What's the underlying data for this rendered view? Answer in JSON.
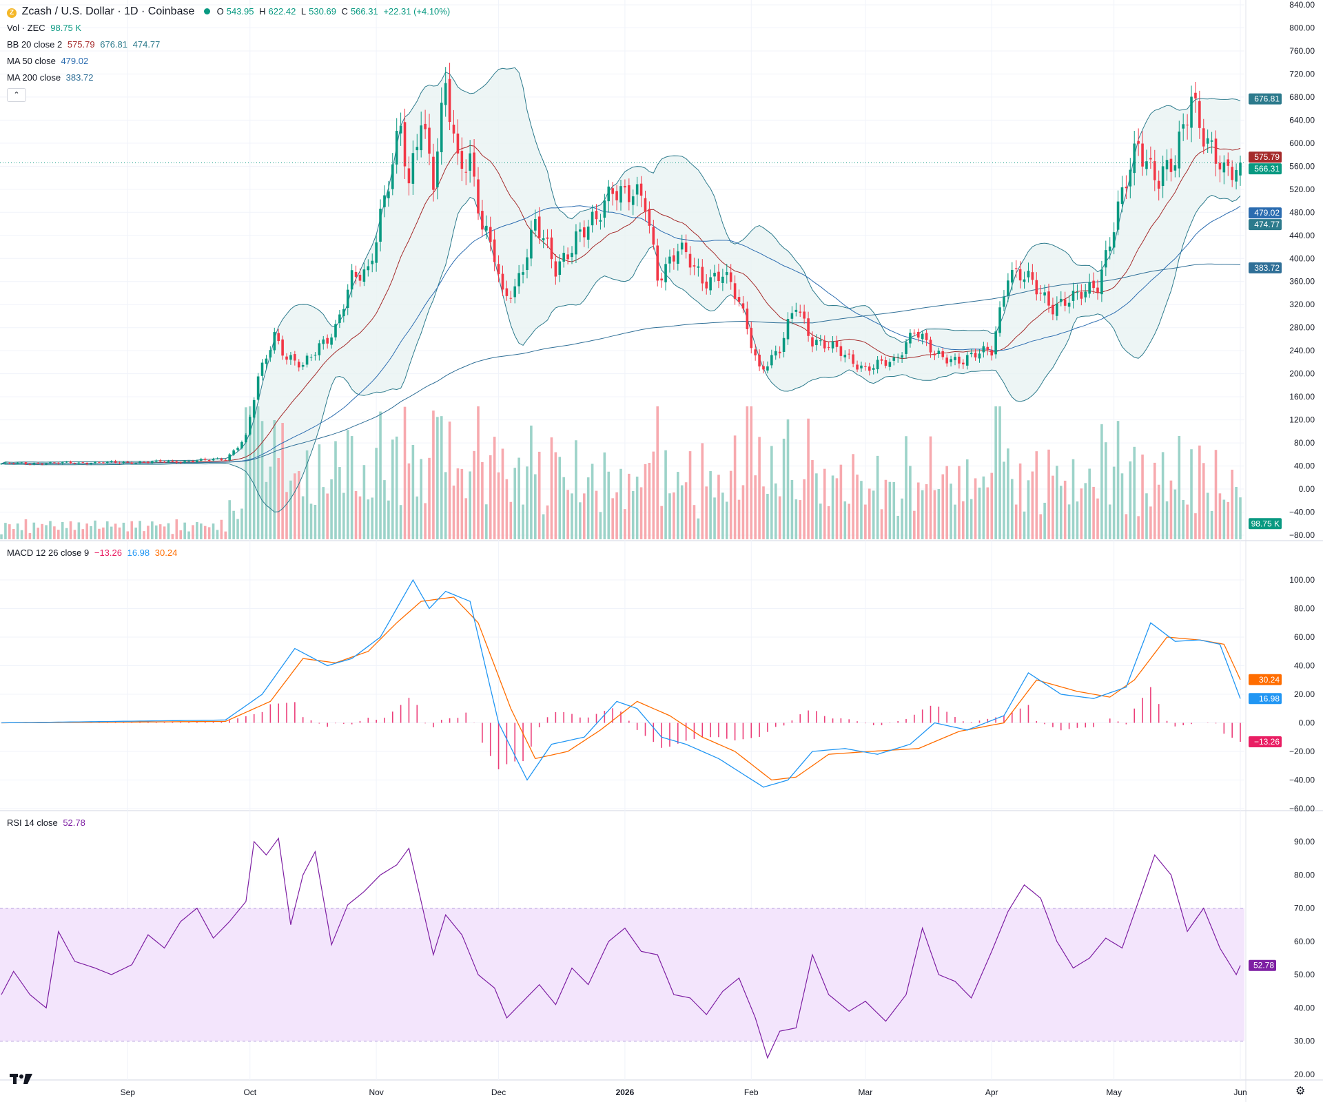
{
  "header": {
    "symbol_icon": "zcash-coin-icon",
    "title": "Zcash / U.S. Dollar · 1D · Coinbase",
    "status_dot_color": "#089981",
    "ohlc": {
      "o_label": "O",
      "o": "543.95",
      "h_label": "H",
      "h": "622.42",
      "l_label": "L",
      "l": "530.69",
      "c_label": "C",
      "c": "566.31",
      "change": "+22.31 (+4.10%)"
    }
  },
  "indicators": {
    "vol": {
      "label": "Vol · ZEC",
      "value": "98.75 K"
    },
    "bb": {
      "label": "BB 20 close 2",
      "basis": "575.79",
      "upper": "676.81",
      "lower": "474.77"
    },
    "ma50": {
      "label": "MA 50 close",
      "value": "479.02"
    },
    "ma200": {
      "label": "MA 200 close",
      "value": "383.72"
    },
    "macd": {
      "label": "MACD 12 26 close 9",
      "hist": "−13.26",
      "macd": "16.98",
      "signal": "30.24"
    },
    "rsi": {
      "label": "RSI 14 close",
      "value": "52.78"
    }
  },
  "colors": {
    "up": "#089981",
    "down": "#f23645",
    "bb_basis": "#a52a2a",
    "bb_band": "#2c7a8c",
    "bb_fill": "#e8f3f2",
    "ma50": "#2b6cb0",
    "ma200": "#2f6f97",
    "macd": "#2196f3",
    "signal": "#ff6d00",
    "hist": "#e91e63",
    "rsi": "#7e1fa3",
    "rsi_band": "#f3e5fc",
    "vol_up": "#9cd3c9",
    "vol_down": "#f7a9ae"
  },
  "chart_data": [
    {
      "type": "candlestick",
      "title": "Zcash / U.S. Dollar · 1D · Coinbase",
      "y_ticks": [
        "840.00",
        "800.00",
        "760.00",
        "720.00",
        "680.00",
        "640.00",
        "600.00",
        "560.00",
        "520.00",
        "480.00",
        "440.00",
        "400.00",
        "360.00",
        "320.00",
        "280.00",
        "240.00",
        "200.00",
        "160.00",
        "120.00",
        "80.00",
        "40.00",
        "0.00",
        "−40.00",
        "−80.00"
      ],
      "ylim": [
        -80,
        840
      ],
      "x_labels": [
        "Sep",
        "Oct",
        "Nov",
        "Dec",
        "2026",
        "Feb",
        "Mar",
        "Apr",
        "May",
        "Jun"
      ],
      "close_path": [
        [
          "2025-08-01",
          44
        ],
        [
          "2025-08-15",
          45
        ],
        [
          "2025-09-01",
          46
        ],
        [
          "2025-09-15",
          48
        ],
        [
          "2025-09-25",
          52
        ],
        [
          "2025-09-30",
          90
        ],
        [
          "2025-10-03",
          190
        ],
        [
          "2025-10-07",
          270
        ],
        [
          "2025-10-10",
          230
        ],
        [
          "2025-10-14",
          210
        ],
        [
          "2025-10-18",
          250
        ],
        [
          "2025-10-22",
          280
        ],
        [
          "2025-10-26",
          360
        ],
        [
          "2025-10-30",
          380
        ],
        [
          "2025-11-02",
          480
        ],
        [
          "2025-11-05",
          560
        ],
        [
          "2025-11-07",
          620
        ],
        [
          "2025-11-09",
          520
        ],
        [
          "2025-11-12",
          660
        ],
        [
          "2025-11-15",
          540
        ],
        [
          "2025-11-18",
          690
        ],
        [
          "2025-11-21",
          560
        ],
        [
          "2025-11-24",
          580
        ],
        [
          "2025-11-27",
          460
        ],
        [
          "2025-11-30",
          400
        ],
        [
          "2025-12-02",
          330
        ],
        [
          "2025-12-05",
          350
        ],
        [
          "2025-12-10",
          460
        ],
        [
          "2025-12-15",
          380
        ],
        [
          "2025-12-20",
          440
        ],
        [
          "2025-12-25",
          460
        ],
        [
          "2025-12-29",
          530
        ],
        [
          "2026-01-03",
          510
        ],
        [
          "2026-01-06",
          490
        ],
        [
          "2026-01-09",
          370
        ],
        [
          "2026-01-14",
          420
        ],
        [
          "2026-01-20",
          360
        ],
        [
          "2026-01-25",
          380
        ],
        [
          "2026-01-29",
          320
        ],
        [
          "2026-02-03",
          210
        ],
        [
          "2026-02-08",
          240
        ],
        [
          "2026-02-12",
          320
        ],
        [
          "2026-02-16",
          260
        ],
        [
          "2026-02-22",
          240
        ],
        [
          "2026-03-01",
          210
        ],
        [
          "2026-03-08",
          220
        ],
        [
          "2026-03-13",
          280
        ],
        [
          "2026-03-18",
          230
        ],
        [
          "2026-03-25",
          225
        ],
        [
          "2026-04-01",
          240
        ],
        [
          "2026-04-05",
          380
        ],
        [
          "2026-04-10",
          360
        ],
        [
          "2026-04-16",
          320
        ],
        [
          "2026-04-22",
          330
        ],
        [
          "2026-04-27",
          360
        ],
        [
          "2026-05-02",
          480
        ],
        [
          "2026-05-07",
          600
        ],
        [
          "2026-05-12",
          540
        ],
        [
          "2026-05-16",
          560
        ],
        [
          "2026-05-20",
          690
        ],
        [
          "2026-05-24",
          600
        ],
        [
          "2026-05-28",
          540
        ],
        [
          "2026-06-01",
          566.31
        ]
      ],
      "bollinger_20_2": {
        "basis_last": 575.79,
        "upper_last": 676.81,
        "lower_last": 474.77
      },
      "ma50_last": 479.02,
      "ma200_last": 383.72,
      "last_price": 566.31,
      "price_labels": [
        {
          "value": "676.81",
          "series": "bb_upper"
        },
        {
          "value": "575.79",
          "series": "bb_basis"
        },
        {
          "value": "566.31",
          "series": "last"
        },
        {
          "value": "479.02",
          "series": "ma50"
        },
        {
          "value": "474.77",
          "series": "bb_lower"
        },
        {
          "value": "383.72",
          "series": "ma200"
        },
        {
          "value": "98.75 K",
          "series": "volume"
        }
      ]
    },
    {
      "type": "line",
      "title": "MACD 12 26 close 9",
      "y_ticks": [
        "100.00",
        "80.00",
        "60.00",
        "40.00",
        "20.00",
        "0.00",
        "−20.00",
        "−40.00",
        "−60.00"
      ],
      "ylim": [
        -60,
        100
      ],
      "series": [
        {
          "name": "macd",
          "points": [
            [
              "2025-08-01",
              0
            ],
            [
              "2025-09-25",
              2
            ],
            [
              "2025-10-04",
              20
            ],
            [
              "2025-10-12",
              52
            ],
            [
              "2025-10-20",
              40
            ],
            [
              "2025-10-26",
              45
            ],
            [
              "2025-11-02",
              60
            ],
            [
              "2025-11-10",
              100
            ],
            [
              "2025-11-14",
              80
            ],
            [
              "2025-11-18",
              92
            ],
            [
              "2025-11-24",
              85
            ],
            [
              "2025-12-01",
              0
            ],
            [
              "2025-12-08",
              -40
            ],
            [
              "2025-12-14",
              -15
            ],
            [
              "2025-12-22",
              -10
            ],
            [
              "2025-12-30",
              15
            ],
            [
              "2026-01-04",
              10
            ],
            [
              "2026-01-10",
              -10
            ],
            [
              "2026-01-16",
              -15
            ],
            [
              "2026-01-24",
              -25
            ],
            [
              "2026-02-04",
              -45
            ],
            [
              "2026-02-10",
              -40
            ],
            [
              "2026-02-16",
              -20
            ],
            [
              "2026-02-24",
              -18
            ],
            [
              "2026-03-04",
              -22
            ],
            [
              "2026-03-12",
              -15
            ],
            [
              "2026-03-18",
              0
            ],
            [
              "2026-03-26",
              -5
            ],
            [
              "2026-04-04",
              5
            ],
            [
              "2026-04-10",
              35
            ],
            [
              "2026-04-18",
              20
            ],
            [
              "2026-04-26",
              17
            ],
            [
              "2026-05-04",
              25
            ],
            [
              "2026-05-10",
              70
            ],
            [
              "2026-05-16",
              57
            ],
            [
              "2026-05-22",
              58
            ],
            [
              "2026-05-27",
              55
            ],
            [
              "2026-06-01",
              16.98
            ]
          ]
        },
        {
          "name": "signal",
          "points": [
            [
              "2025-08-01",
              0
            ],
            [
              "2025-09-25",
              1
            ],
            [
              "2025-10-06",
              15
            ],
            [
              "2025-10-14",
              45
            ],
            [
              "2025-10-22",
              42
            ],
            [
              "2025-10-30",
              50
            ],
            [
              "2025-11-06",
              70
            ],
            [
              "2025-11-12",
              85
            ],
            [
              "2025-11-20",
              88
            ],
            [
              "2025-11-26",
              70
            ],
            [
              "2025-12-04",
              10
            ],
            [
              "2025-12-10",
              -25
            ],
            [
              "2025-12-18",
              -20
            ],
            [
              "2025-12-26",
              -5
            ],
            [
              "2026-01-04",
              15
            ],
            [
              "2026-01-12",
              5
            ],
            [
              "2026-01-20",
              -10
            ],
            [
              "2026-01-28",
              -20
            ],
            [
              "2026-02-06",
              -40
            ],
            [
              "2026-02-12",
              -38
            ],
            [
              "2026-02-20",
              -22
            ],
            [
              "2026-03-02",
              -20
            ],
            [
              "2026-03-14",
              -18
            ],
            [
              "2026-03-24",
              -6
            ],
            [
              "2026-04-04",
              0
            ],
            [
              "2026-04-12",
              30
            ],
            [
              "2026-04-22",
              22
            ],
            [
              "2026-04-30",
              18
            ],
            [
              "2026-05-06",
              30
            ],
            [
              "2026-05-14",
              60
            ],
            [
              "2026-05-22",
              58
            ],
            [
              "2026-05-28",
              55
            ],
            [
              "2026-06-01",
              30.24
            ]
          ]
        }
      ],
      "histogram_last": -13.26
    },
    {
      "type": "line",
      "title": "RSI 14 close",
      "y_ticks": [
        "90.00",
        "80.00",
        "70.00",
        "60.00",
        "50.00",
        "40.00",
        "30.00",
        "20.00"
      ],
      "ylim": [
        20,
        90
      ],
      "band": [
        30,
        70
      ],
      "series": [
        {
          "name": "rsi",
          "points": [
            [
              "2025-08-01",
              44
            ],
            [
              "2025-08-04",
              51
            ],
            [
              "2025-08-08",
              44
            ],
            [
              "2025-08-12",
              40
            ],
            [
              "2025-08-15",
              63
            ],
            [
              "2025-08-19",
              54
            ],
            [
              "2025-08-24",
              52
            ],
            [
              "2025-08-28",
              50
            ],
            [
              "2025-09-02",
              53
            ],
            [
              "2025-09-06",
              62
            ],
            [
              "2025-09-10",
              58
            ],
            [
              "2025-09-14",
              66
            ],
            [
              "2025-09-18",
              70
            ],
            [
              "2025-09-22",
              61
            ],
            [
              "2025-09-26",
              66
            ],
            [
              "2025-09-30",
              72
            ],
            [
              "2025-10-02",
              90
            ],
            [
              "2025-10-05",
              86
            ],
            [
              "2025-10-08",
              91
            ],
            [
              "2025-10-11",
              65
            ],
            [
              "2025-10-14",
              80
            ],
            [
              "2025-10-17",
              87
            ],
            [
              "2025-10-21",
              59
            ],
            [
              "2025-10-25",
              71
            ],
            [
              "2025-10-29",
              75
            ],
            [
              "2025-11-02",
              80
            ],
            [
              "2025-11-06",
              83
            ],
            [
              "2025-11-09",
              88
            ],
            [
              "2025-11-12",
              72
            ],
            [
              "2025-11-15",
              56
            ],
            [
              "2025-11-18",
              68
            ],
            [
              "2025-11-22",
              62
            ],
            [
              "2025-11-26",
              50
            ],
            [
              "2025-11-30",
              46
            ],
            [
              "2025-12-03",
              37
            ],
            [
              "2025-12-07",
              42
            ],
            [
              "2025-12-11",
              47
            ],
            [
              "2025-12-15",
              41
            ],
            [
              "2025-12-19",
              52
            ],
            [
              "2025-12-23",
              47
            ],
            [
              "2025-12-28",
              60
            ],
            [
              "2026-01-01",
              64
            ],
            [
              "2026-01-05",
              57
            ],
            [
              "2026-01-09",
              56
            ],
            [
              "2026-01-13",
              44
            ],
            [
              "2026-01-17",
              43
            ],
            [
              "2026-01-21",
              38
            ],
            [
              "2026-01-25",
              45
            ],
            [
              "2026-01-29",
              49
            ],
            [
              "2026-02-02",
              37
            ],
            [
              "2026-02-05",
              25
            ],
            [
              "2026-02-08",
              33
            ],
            [
              "2026-02-12",
              34
            ],
            [
              "2026-02-16",
              56
            ],
            [
              "2026-02-20",
              44
            ],
            [
              "2026-02-25",
              39
            ],
            [
              "2026-03-01",
              42
            ],
            [
              "2026-03-06",
              36
            ],
            [
              "2026-03-11",
              44
            ],
            [
              "2026-03-15",
              64
            ],
            [
              "2026-03-19",
              50
            ],
            [
              "2026-03-23",
              48
            ],
            [
              "2026-03-27",
              43
            ],
            [
              "2026-04-01",
              57
            ],
            [
              "2026-04-05",
              69
            ],
            [
              "2026-04-09",
              77
            ],
            [
              "2026-04-13",
              73
            ],
            [
              "2026-04-17",
              60
            ],
            [
              "2026-04-21",
              52
            ],
            [
              "2026-04-25",
              55
            ],
            [
              "2026-04-29",
              61
            ],
            [
              "2026-05-03",
              58
            ],
            [
              "2026-05-07",
              72
            ],
            [
              "2026-05-11",
              86
            ],
            [
              "2026-05-15",
              80
            ],
            [
              "2026-05-19",
              63
            ],
            [
              "2026-05-23",
              70
            ],
            [
              "2026-05-27",
              58
            ],
            [
              "2026-05-31",
              50
            ],
            [
              "2026-06-01",
              52.78
            ]
          ]
        }
      ],
      "last_label": "52.78"
    }
  ]
}
